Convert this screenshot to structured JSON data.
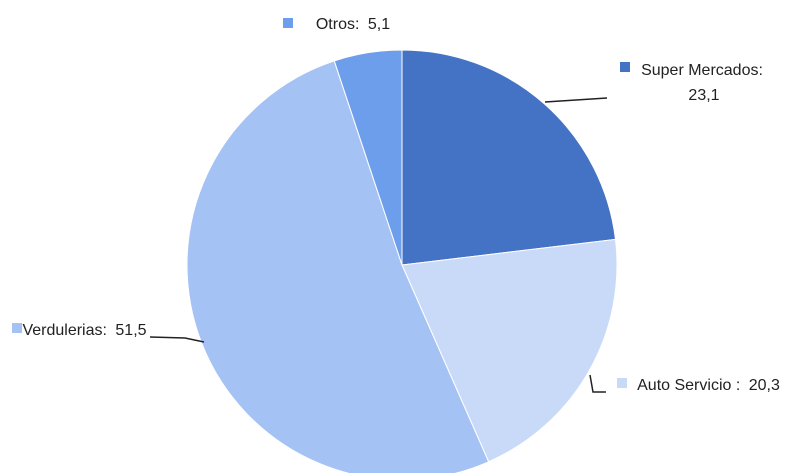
{
  "chart_data": {
    "type": "pie",
    "categories": [
      "Super Mercados:",
      "Auto Servicio :",
      "Verdulerias:",
      "Otros:"
    ],
    "values": [
      23.1,
      20.3,
      51.5,
      5.1
    ],
    "value_labels": [
      "23,1",
      "20,3",
      "51,5",
      "5,1"
    ],
    "colors": [
      "#4472c4",
      "#c9daf8",
      "#a4c2f4",
      "#6d9eeb"
    ]
  }
}
